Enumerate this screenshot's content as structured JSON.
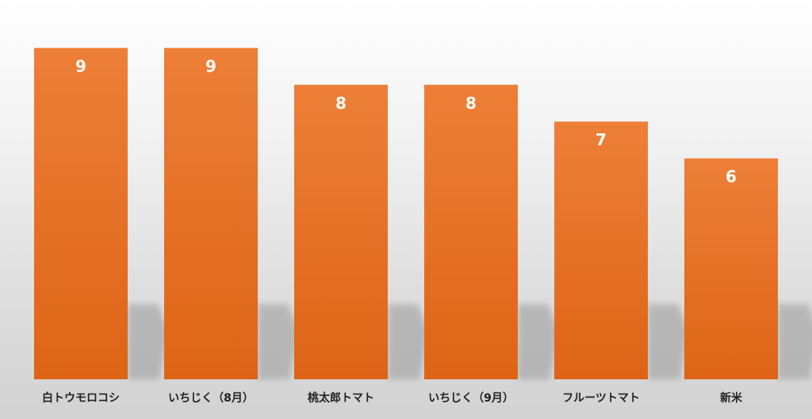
{
  "chart_data": {
    "type": "bar",
    "categories": [
      "白トウモロコシ",
      "いちじく（8月）",
      "桃太郎トマト",
      "いちじく（9月）",
      "フルーツトマト",
      "新米"
    ],
    "values": [
      9,
      9,
      8,
      8,
      7,
      6
    ],
    "ylim": [
      0,
      9
    ],
    "grid": false,
    "legend": "none",
    "data_labels": true
  },
  "colors": {
    "bar_top": "#ED7F38",
    "bar_bottom": "#DD6415",
    "label_text": "#FFFFFF",
    "tick_text": "#222222"
  }
}
